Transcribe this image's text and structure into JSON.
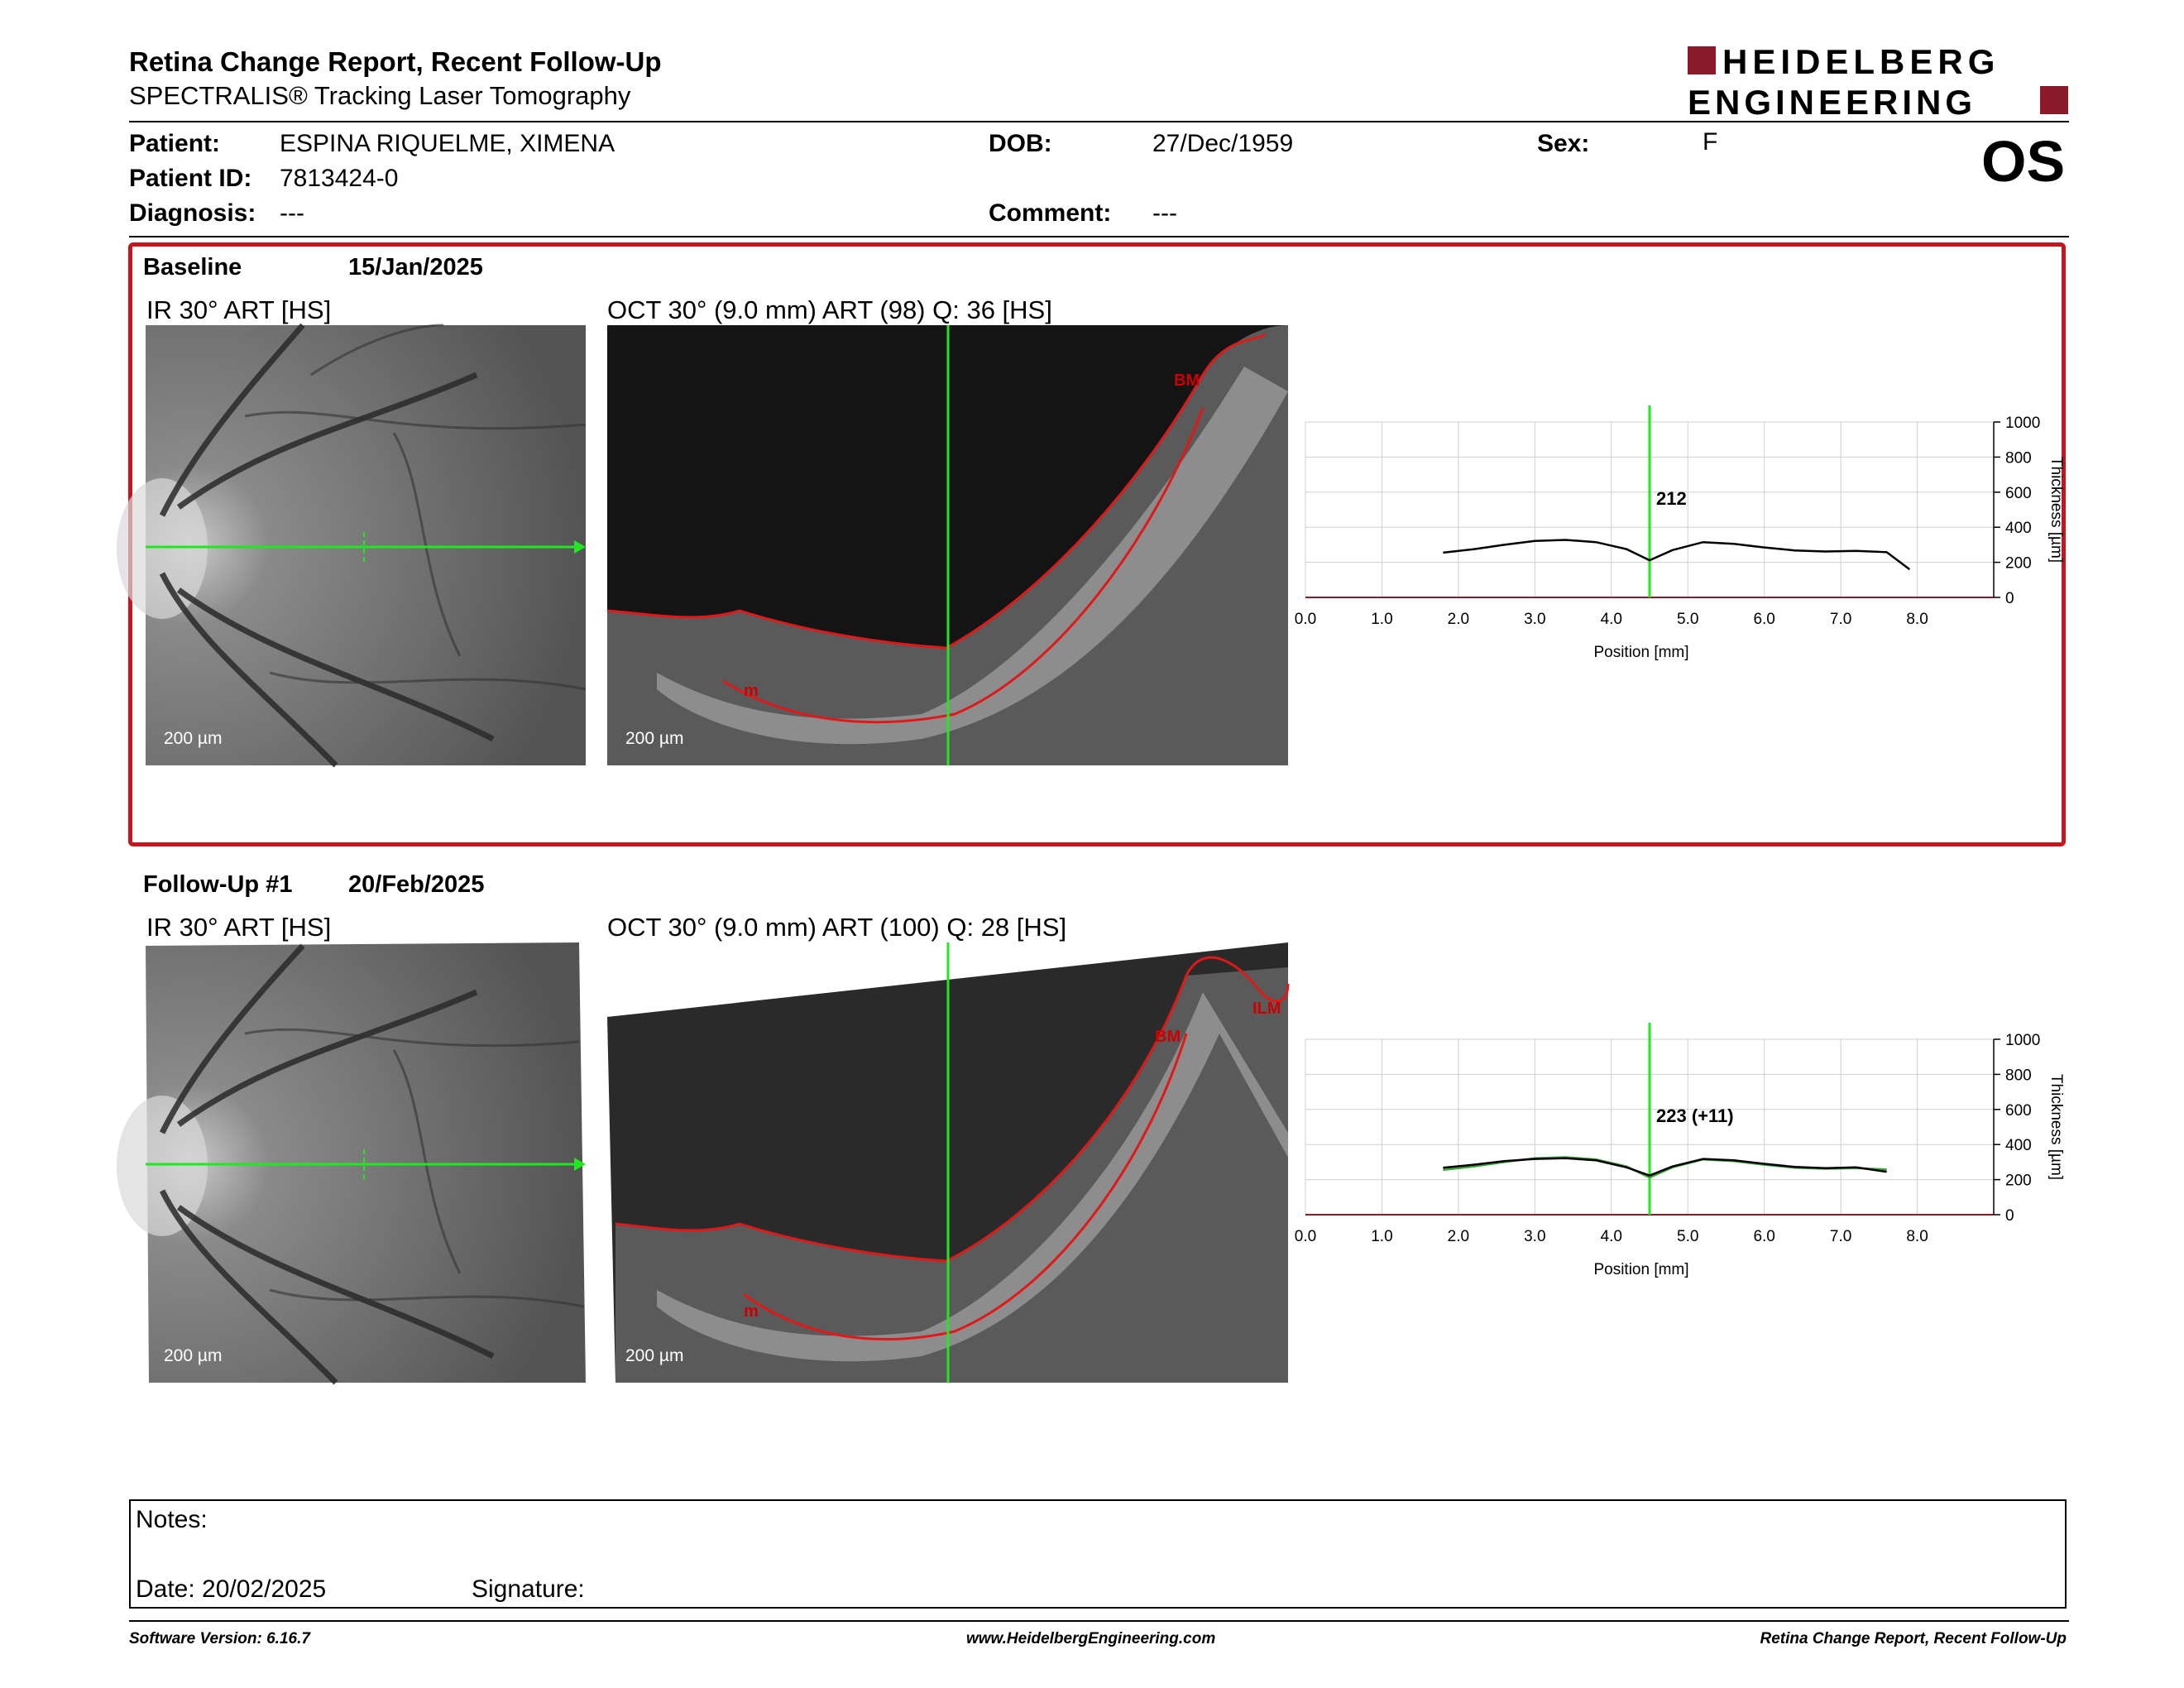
{
  "header": {
    "title": "Retina Change Report, Recent Follow-Up",
    "subtitle": "SPECTRALIS® Tracking Laser Tomography",
    "logo_line1": "HEIDELBERG",
    "logo_line2": "ENGINEERING",
    "brand_color": "#8b1a2b"
  },
  "patient": {
    "patient_label": "Patient:",
    "patient_value": "ESPINA RIQUELME, XIMENA",
    "id_label": "Patient ID:",
    "id_value": "7813424-0",
    "diagnosis_label": "Diagnosis:",
    "diagnosis_value": "---",
    "dob_label": "DOB:",
    "dob_value": "27/Dec/1959",
    "comment_label": "Comment:",
    "comment_value": "---",
    "sex_label": "Sex:",
    "sex_value": "F",
    "eye": "OS"
  },
  "baseline": {
    "name": "Baseline",
    "date": "15/Jan/2025",
    "ir_title": "IR 30° ART [HS]",
    "oct_title": "OCT 30° (9.0 mm) ART (98) Q: 36 [HS]",
    "ir_scale": "200 µm",
    "oct_scale": "200 µm",
    "oct_labels": [
      "BM",
      "m"
    ]
  },
  "followup": {
    "name": "Follow-Up #1",
    "date": "20/Feb/2025",
    "ir_title": "IR 30° ART [HS]",
    "oct_title": "OCT 30° (9.0 mm) ART (100) Q: 28 [HS]",
    "ir_scale": "200 µm",
    "oct_scale": "200 µm",
    "oct_labels": [
      "BM",
      "ILM",
      "m"
    ]
  },
  "chart_data": [
    {
      "type": "line",
      "xlabel": "Position [mm]",
      "ylabel": "Thickness [µm]",
      "xlim": [
        0,
        9
      ],
      "ylim": [
        0,
        1000
      ],
      "x_ticks": [
        "0.0",
        "1.0",
        "2.0",
        "3.0",
        "4.0",
        "5.0",
        "6.0",
        "7.0",
        "8.0"
      ],
      "y_ticks": [
        "0",
        "200",
        "400",
        "600",
        "800",
        "1000"
      ],
      "grid": true,
      "cursor_x": 4.5,
      "annotation": "212",
      "series": [
        {
          "color": "#000000",
          "x": [
            1.8,
            2.2,
            2.6,
            3.0,
            3.4,
            3.8,
            4.2,
            4.5,
            4.8,
            5.2,
            5.6,
            6.0,
            6.4,
            6.8,
            7.2,
            7.6,
            7.9
          ],
          "y": [
            255,
            275,
            300,
            322,
            328,
            315,
            275,
            212,
            270,
            315,
            305,
            285,
            268,
            262,
            265,
            258,
            160
          ]
        }
      ]
    },
    {
      "type": "line",
      "xlabel": "Position [mm]",
      "ylabel": "Thickness [µm]",
      "xlim": [
        0,
        9
      ],
      "ylim": [
        0,
        1000
      ],
      "x_ticks": [
        "0.0",
        "1.0",
        "2.0",
        "3.0",
        "4.0",
        "5.0",
        "6.0",
        "7.0",
        "8.0"
      ],
      "y_ticks": [
        "0",
        "200",
        "400",
        "600",
        "800",
        "1000"
      ],
      "grid": true,
      "cursor_x": 4.5,
      "annotation": "223 (+11)",
      "series": [
        {
          "color": "#000000",
          "x": [
            1.8,
            2.2,
            2.6,
            3.0,
            3.4,
            3.8,
            4.2,
            4.5,
            4.8,
            5.2,
            5.6,
            6.0,
            6.4,
            6.8,
            7.2,
            7.6
          ],
          "y": [
            268,
            285,
            305,
            318,
            322,
            310,
            270,
            223,
            275,
            318,
            310,
            290,
            272,
            265,
            270,
            245
          ]
        },
        {
          "color": "#3aa83a",
          "x": [
            1.8,
            2.2,
            2.6,
            3.0,
            3.4,
            3.8,
            4.2,
            4.5,
            4.8,
            5.2,
            5.6,
            6.0,
            6.4,
            6.8,
            7.2,
            7.6
          ],
          "y": [
            255,
            275,
            300,
            322,
            328,
            315,
            275,
            212,
            270,
            315,
            305,
            285,
            268,
            262,
            265,
            258
          ]
        }
      ]
    }
  ],
  "notes": {
    "notes_label": "Notes:",
    "date_label": "Date: 20/02/2025",
    "signature_label": "Signature:"
  },
  "footer": {
    "software": "Software Version: 6.16.7",
    "website": "www.HeidelbergEngineering.com",
    "report": "Retina Change Report, Recent Follow-Up"
  }
}
